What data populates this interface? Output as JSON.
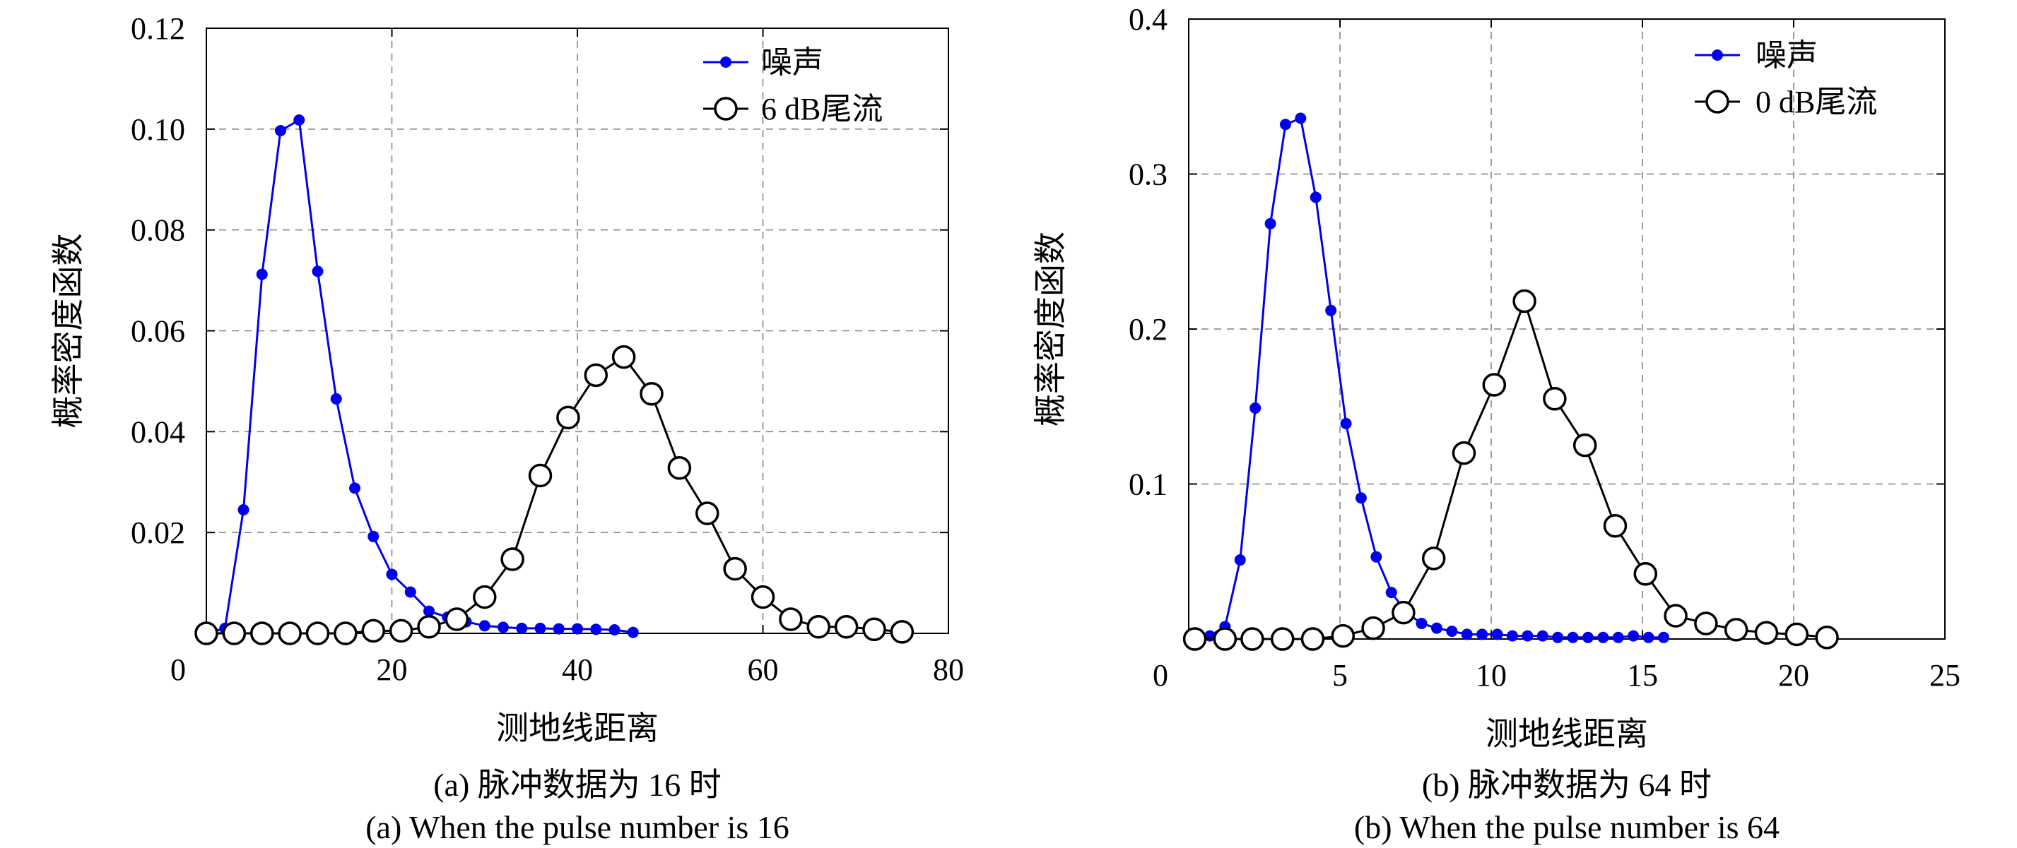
{
  "colors": {
    "noise": "#0000ee",
    "wake": "#000000",
    "grid": "#7f7f7f"
  },
  "chart_data": [
    {
      "type": "line",
      "caption_cn": "(a) 脉冲数据为 16 时",
      "caption_en": "(a) When the pulse number is 16",
      "xlabel": "测地线距离",
      "ylabel": "概率密度函数",
      "xlim": [
        0,
        80
      ],
      "ylim": [
        0,
        0.12
      ],
      "xticks": [
        0,
        20,
        40,
        60,
        80
      ],
      "yticks": [
        0.02,
        0.04,
        0.06,
        0.08,
        0.1,
        0.12
      ],
      "ytick_labels": [
        "0.02",
        "0.04",
        "0.06",
        "0.08",
        "0.10",
        "0.12"
      ],
      "grid": true,
      "legend_position": "top-right",
      "series": [
        {
          "name": "噪声",
          "marker": "filled-dot",
          "x": [
            0,
            2,
            4,
            6,
            8,
            10,
            12,
            14,
            16,
            18,
            20,
            22,
            24,
            26,
            28,
            30,
            32,
            34,
            36,
            38,
            40,
            42,
            44,
            46
          ],
          "y": [
            0.0,
            0.001,
            0.0245,
            0.0712,
            0.0997,
            0.1018,
            0.0718,
            0.0465,
            0.0288,
            0.0192,
            0.0117,
            0.0082,
            0.0044,
            0.0032,
            0.0023,
            0.0015,
            0.0012,
            0.001,
            0.001,
            0.0009,
            0.0009,
            0.0008,
            0.0007,
            0.0002
          ]
        },
        {
          "name": "6 dB尾流",
          "marker": "open-circle",
          "x": [
            0,
            3,
            6,
            9,
            12,
            15,
            18,
            21,
            24,
            27,
            30,
            33,
            36,
            39,
            42,
            45,
            48,
            51,
            54,
            57,
            60,
            63,
            66,
            69,
            72,
            75
          ],
          "y": [
            0.0,
            0.0,
            0.0,
            0.0,
            0.0,
            0.0,
            0.0005,
            0.0005,
            0.0013,
            0.0028,
            0.0072,
            0.0147,
            0.0313,
            0.0428,
            0.0512,
            0.0548,
            0.0475,
            0.0328,
            0.0238,
            0.0128,
            0.0072,
            0.0028,
            0.0013,
            0.0013,
            0.0008,
            0.0003
          ]
        }
      ]
    },
    {
      "type": "line",
      "caption_cn": "(b) 脉冲数据为 64 时",
      "caption_en": "(b) When the pulse number is 64",
      "xlabel": "测地线距离",
      "ylabel": "概率密度函数",
      "xlim": [
        0,
        25
      ],
      "ylim": [
        0,
        0.4
      ],
      "xticks": [
        0,
        5,
        10,
        15,
        20,
        25
      ],
      "yticks": [
        0.1,
        0.2,
        0.3,
        0.4
      ],
      "ytick_labels": [
        "0.1",
        "0.2",
        "0.3",
        "0.4"
      ],
      "grid": true,
      "legend_position": "top-right",
      "series": [
        {
          "name": "噪声",
          "marker": "filled-dot",
          "x": [
            0.2,
            0.7,
            1.2,
            1.7,
            2.2,
            2.7,
            3.2,
            3.7,
            4.2,
            4.7,
            5.2,
            5.7,
            6.2,
            6.7,
            7.2,
            7.7,
            8.2,
            8.7,
            9.2,
            9.7,
            10.2,
            10.7,
            11.2,
            11.7,
            12.2,
            12.7,
            13.2,
            13.7,
            14.2,
            14.7,
            15.2,
            15.7
          ],
          "y": [
            0.0,
            0.002,
            0.008,
            0.051,
            0.149,
            0.268,
            0.332,
            0.336,
            0.285,
            0.212,
            0.139,
            0.091,
            0.053,
            0.03,
            0.017,
            0.01,
            0.007,
            0.005,
            0.003,
            0.003,
            0.003,
            0.002,
            0.002,
            0.002,
            0.001,
            0.001,
            0.001,
            0.001,
            0.001,
            0.002,
            0.001,
            0.001
          ]
        },
        {
          "name": "0 dB尾流",
          "marker": "open-circle",
          "x": [
            0.2,
            1.2,
            2.1,
            3.1,
            4.1,
            5.1,
            6.1,
            7.1,
            8.1,
            9.1,
            10.1,
            11.1,
            12.1,
            13.1,
            14.1,
            15.1,
            16.1,
            17.1,
            18.1,
            19.1,
            20.1,
            21.1
          ],
          "y": [
            0.0,
            0.0,
            0.0,
            0.0,
            0.0,
            0.002,
            0.007,
            0.017,
            0.052,
            0.12,
            0.164,
            0.218,
            0.155,
            0.125,
            0.073,
            0.042,
            0.015,
            0.01,
            0.006,
            0.004,
            0.003,
            0.001
          ]
        }
      ]
    }
  ]
}
